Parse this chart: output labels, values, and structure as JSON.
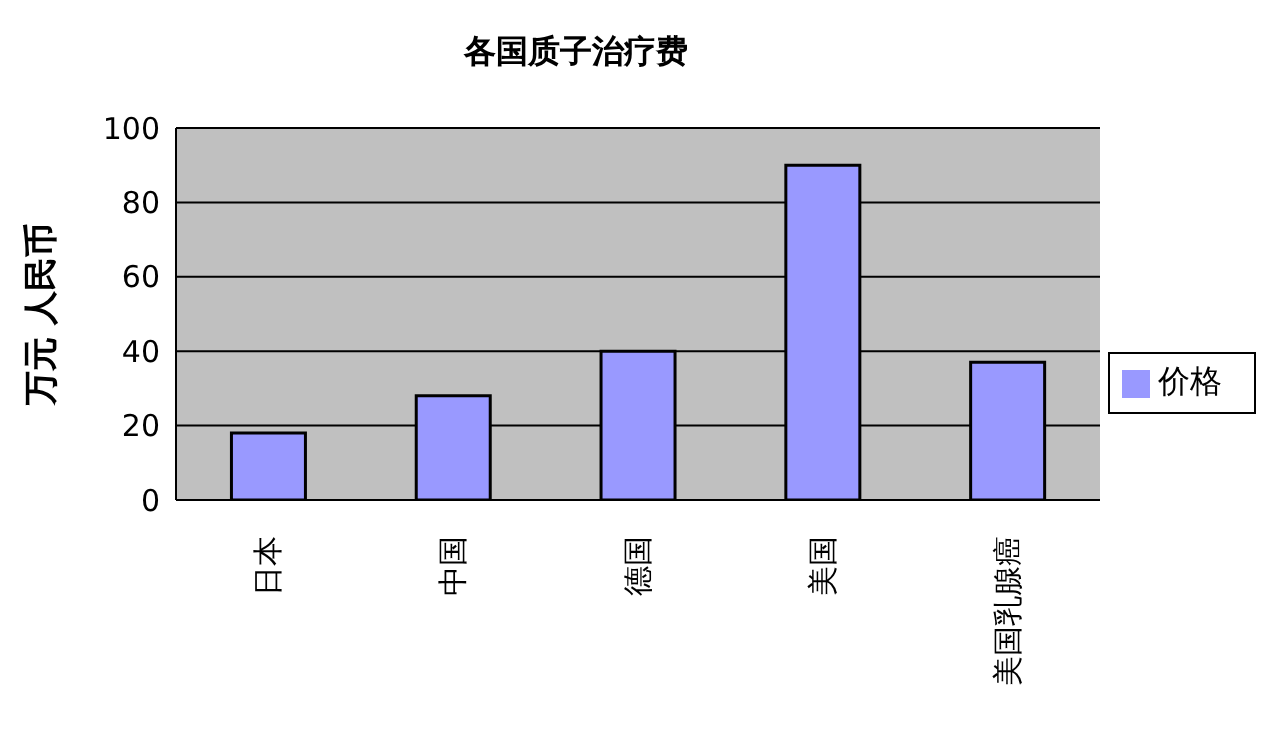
{
  "chart_data": {
    "type": "bar",
    "title": "各国质子治疗费",
    "ylabel": "万元 人民币",
    "categories": [
      "日本",
      "中国",
      "德国",
      "美国",
      "美国乳腺癌"
    ],
    "series": [
      {
        "name": "价格",
        "color": "#9999ff",
        "values": [
          18,
          28,
          40,
          90,
          37
        ]
      }
    ],
    "ylim": [
      0,
      100
    ],
    "yticks": [
      0,
      20,
      40,
      60,
      80,
      100
    ],
    "grid": "y",
    "legend": "right"
  }
}
